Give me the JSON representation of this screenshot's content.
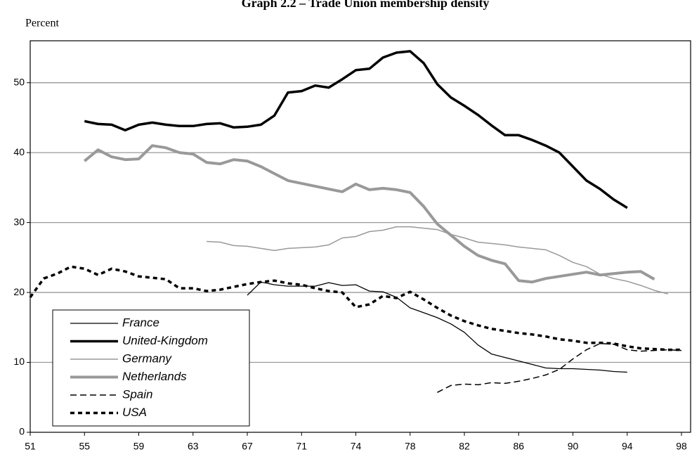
{
  "chart_data": {
    "type": "line",
    "title": "Graph 2.2 – Trade Union membership density",
    "y_label": "Percent",
    "categories": [
      "51",
      null,
      null,
      null,
      "55",
      null,
      null,
      null,
      "59",
      null,
      null,
      null,
      "63",
      null,
      null,
      null,
      "67",
      null,
      null,
      null,
      "71",
      null,
      null,
      null,
      "74",
      null,
      null,
      null,
      "78",
      null,
      null,
      null,
      "82",
      null,
      null,
      null,
      "86",
      null,
      null,
      null,
      "90",
      null,
      null,
      null,
      "94",
      null,
      null,
      null,
      "98"
    ],
    "ylim": [
      0,
      56
    ],
    "yticks": [
      0,
      10,
      20,
      30,
      40,
      50
    ],
    "grid": true,
    "series": [
      {
        "name": "France",
        "color": "#000000",
        "width": 1.3,
        "dash": "none",
        "values": [
          null,
          null,
          null,
          null,
          null,
          null,
          null,
          null,
          null,
          null,
          null,
          null,
          null,
          null,
          null,
          null,
          19.6,
          21.5,
          21.1,
          20.9,
          20.9,
          20.9,
          21.4,
          21,
          21.1,
          20.2,
          20.1,
          19.3,
          17.8,
          17.1,
          16.4,
          15.5,
          14.3,
          12.5,
          11.2,
          10.7,
          10.2,
          9.7,
          9.2,
          9.1,
          9.1,
          9,
          8.9,
          8.7,
          8.6,
          null,
          null,
          null,
          null
        ]
      },
      {
        "name": "United-Kingdom",
        "color": "#000000",
        "width": 3.5,
        "dash": "none",
        "values": [
          null,
          null,
          null,
          null,
          44.5,
          44.1,
          44,
          43.2,
          44,
          44.3,
          44,
          43.8,
          43.8,
          44.1,
          44.2,
          43.6,
          43.7,
          44,
          45.3,
          48.6,
          48.8,
          49.6,
          49.3,
          50.5,
          51.8,
          52,
          53.6,
          54.3,
          54.5,
          52.8,
          49.8,
          47.9,
          46.7,
          45.4,
          43.9,
          42.5,
          42.5,
          41.8,
          41,
          40,
          38,
          36,
          34.8,
          33.3,
          32.1,
          null,
          null,
          null,
          null
        ]
      },
      {
        "name": "Germany",
        "color": "#999999",
        "width": 1.5,
        "dash": "none",
        "values": [
          null,
          null,
          null,
          null,
          null,
          null,
          null,
          null,
          null,
          null,
          null,
          null,
          null,
          27.3,
          27.2,
          26.7,
          26.6,
          26.3,
          26,
          26.3,
          26.4,
          26.5,
          26.8,
          27.8,
          28,
          28.7,
          28.9,
          29.4,
          29.4,
          29.2,
          29,
          28.3,
          27.8,
          27.2,
          27,
          26.8,
          26.5,
          26.3,
          26.1,
          25.3,
          24.3,
          23.7,
          22.6,
          22,
          21.6,
          21,
          20.3,
          19.8,
          null
        ]
      },
      {
        "name": "Netherlands",
        "color": "#999999",
        "width": 4,
        "dash": "none",
        "values": [
          null,
          null,
          null,
          null,
          38.8,
          40.4,
          39.4,
          39,
          39.1,
          41,
          40.7,
          40,
          39.8,
          38.6,
          38.4,
          39,
          38.8,
          38,
          37,
          36,
          35.6,
          35.2,
          34.8,
          34.4,
          35.5,
          34.7,
          34.9,
          34.7,
          34.3,
          32.3,
          29.8,
          28.2,
          26.6,
          25.3,
          24.6,
          24.1,
          21.7,
          21.5,
          22,
          22.3,
          22.6,
          22.9,
          22.5,
          22.7,
          22.9,
          23,
          21.9,
          null,
          null
        ]
      },
      {
        "name": "Spain",
        "color": "#000000",
        "width": 1.5,
        "dash": "9,5",
        "values": [
          null,
          null,
          null,
          null,
          null,
          null,
          null,
          null,
          null,
          null,
          null,
          null,
          null,
          null,
          null,
          null,
          null,
          null,
          null,
          null,
          null,
          null,
          null,
          null,
          null,
          null,
          null,
          null,
          null,
          null,
          5.7,
          6.7,
          6.9,
          6.8,
          7.1,
          7,
          7.3,
          7.7,
          8.2,
          9,
          10.5,
          11.8,
          12.7,
          12.6,
          11.8,
          11.6,
          11.7,
          11.8,
          11.7
        ]
      },
      {
        "name": "USA",
        "color": "#000000",
        "width": 3.5,
        "dash": "6,5",
        "values": [
          19.3,
          22,
          22.7,
          23.7,
          23.4,
          22.5,
          23.4,
          23,
          22.3,
          22.1,
          21.9,
          20.6,
          20.6,
          20.2,
          20.4,
          20.8,
          21.2,
          21.5,
          21.7,
          21.3,
          21.1,
          20.6,
          20.2,
          20,
          17.9,
          18.3,
          19.5,
          19.2,
          20.1,
          19,
          17.8,
          16.7,
          15.9,
          15.3,
          14.8,
          14.5,
          14.2,
          14,
          13.7,
          13.3,
          13.1,
          12.8,
          12.8,
          12.7,
          12.3,
          12,
          11.9,
          11.8,
          11.8
        ]
      }
    ]
  }
}
